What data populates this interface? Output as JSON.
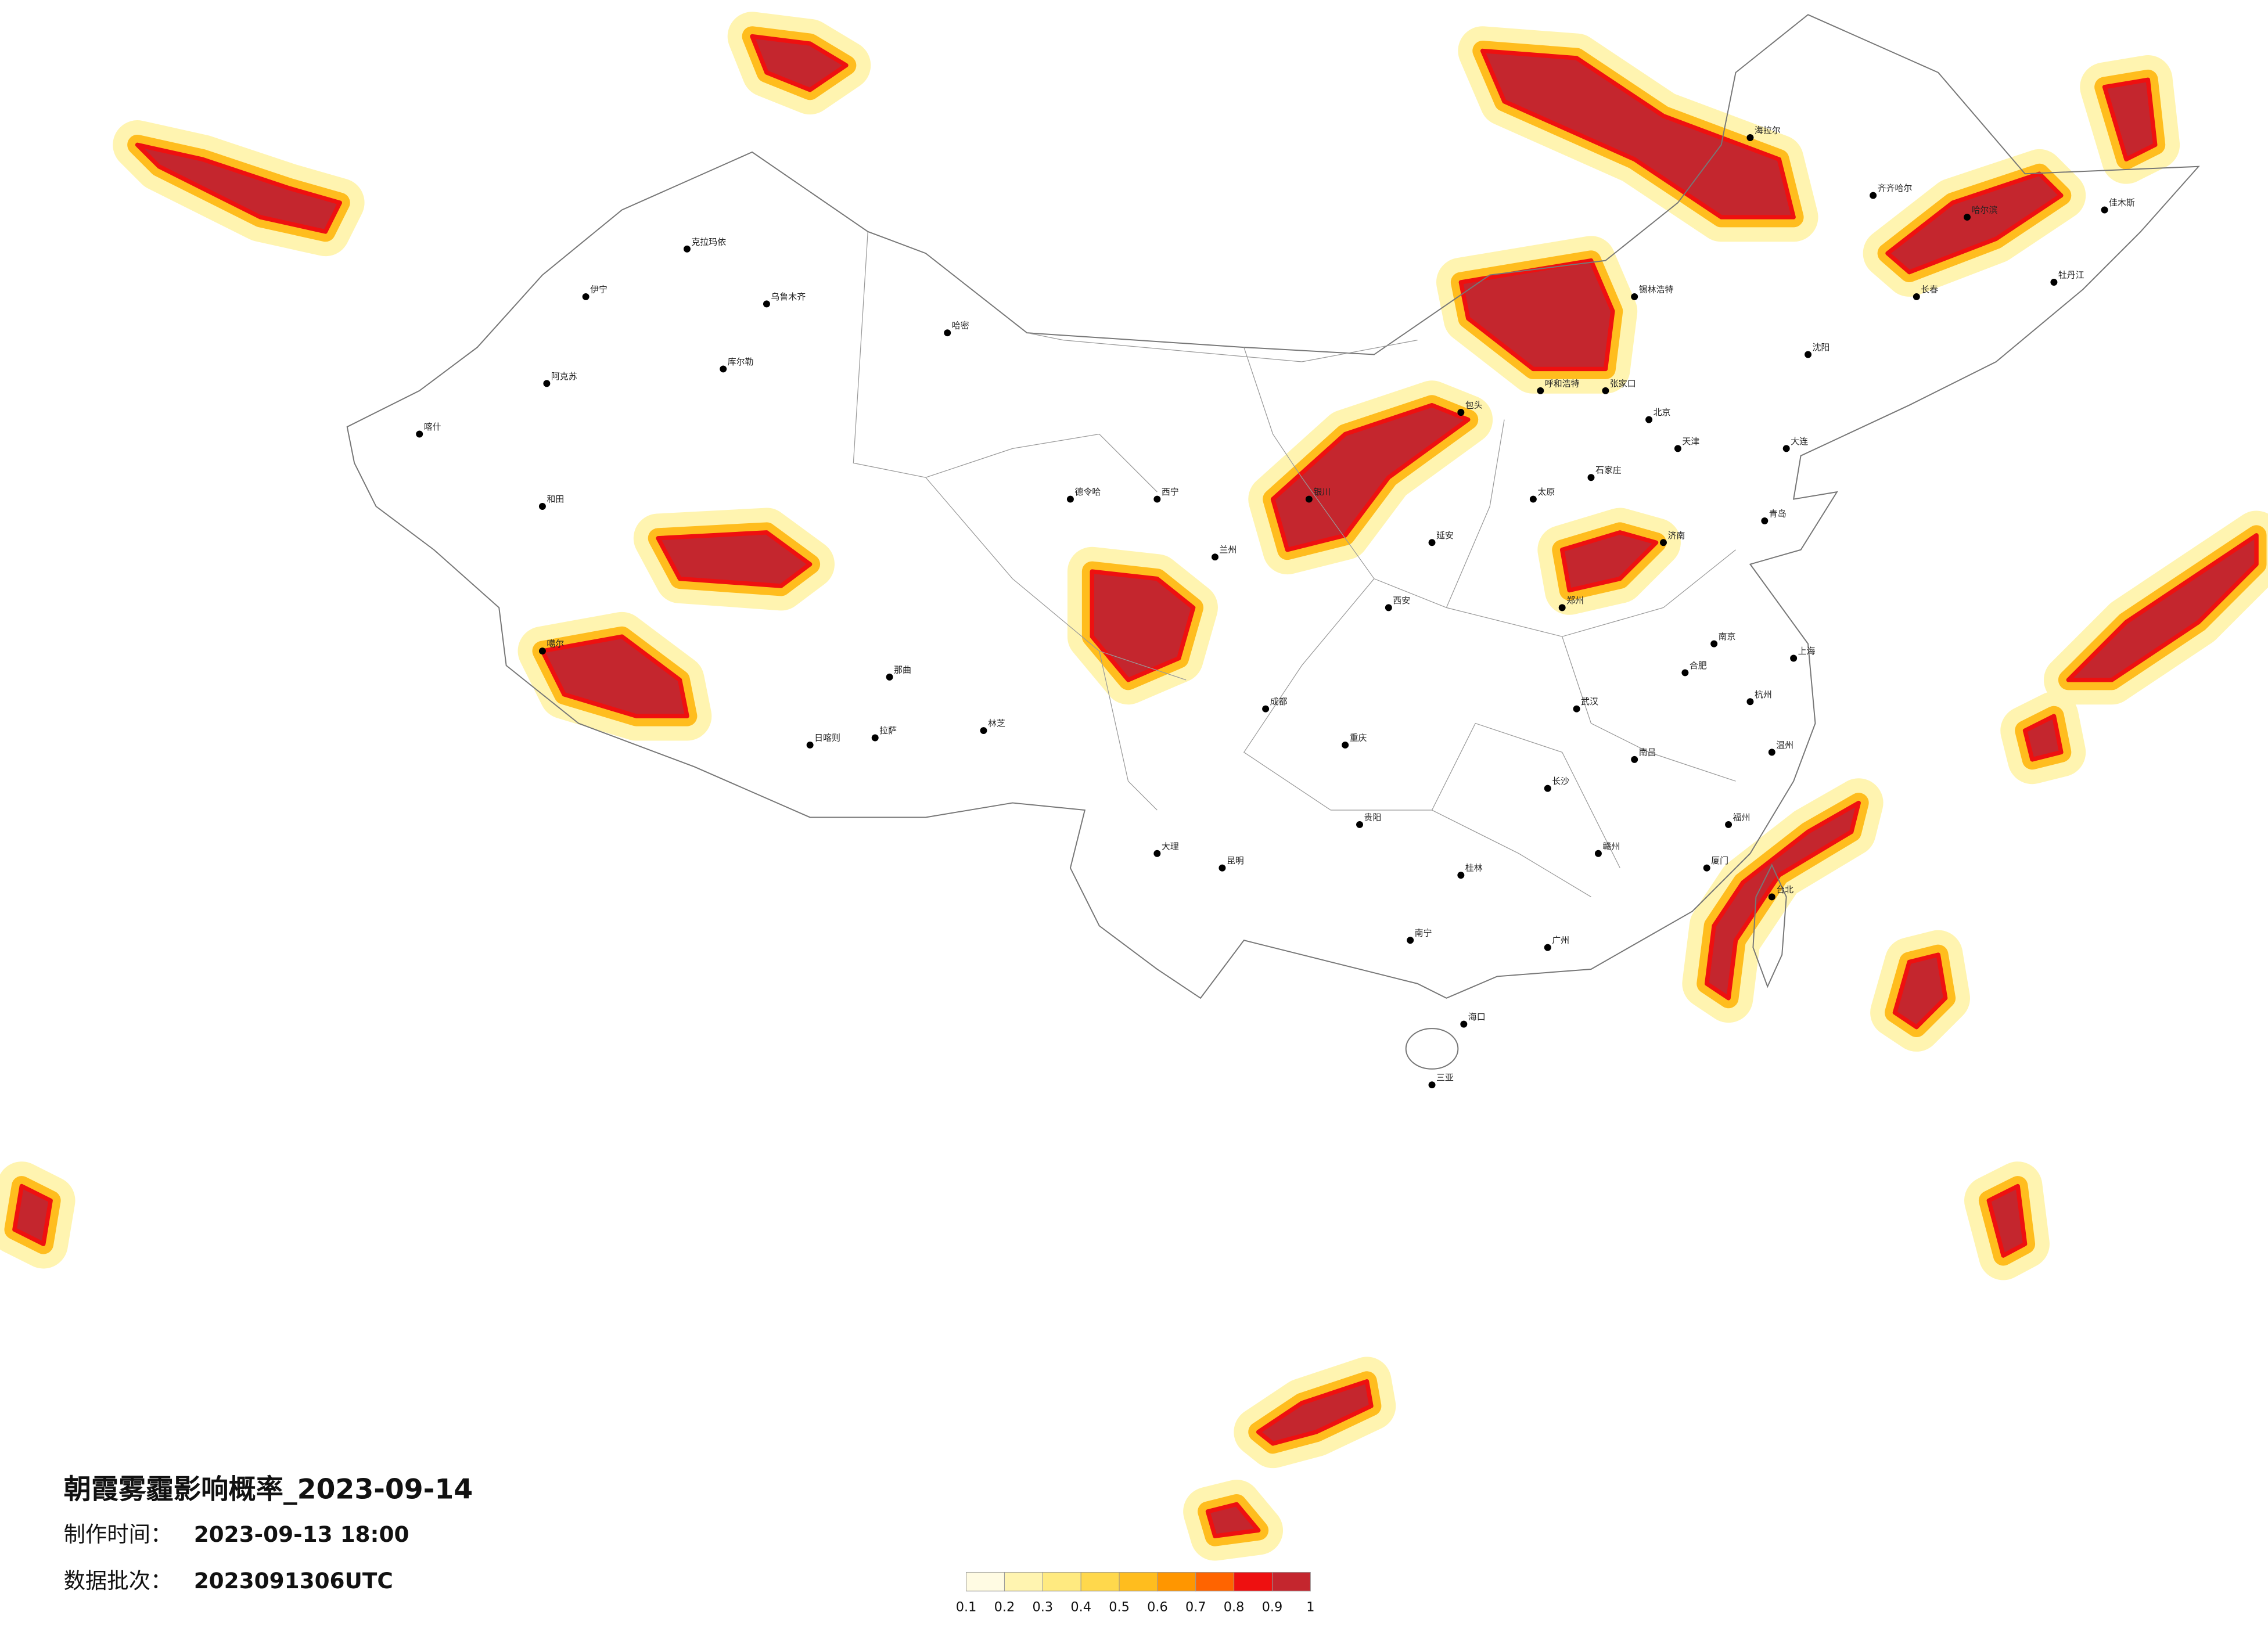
{
  "title": "朝霞雾霾影响概率_2023-09-14",
  "info": [
    {
      "label": "制作时间：",
      "value": "2023-09-13 18:00"
    },
    {
      "label": "数据批次：",
      "value": "2023091306UTC"
    }
  ],
  "legend": {
    "colors": [
      "#fffbe3",
      "#fff4b0",
      "#ffea80",
      "#ffd84c",
      "#ffbd1e",
      "#ff9600",
      "#ff6400",
      "#ee1010",
      "#c4262e"
    ],
    "ticks": [
      0.1,
      0.2,
      0.3,
      0.4,
      0.5,
      0.6,
      0.7,
      0.8,
      0.9,
      1
    ]
  },
  "cities": [
    "乌鲁木齐",
    "伊宁",
    "克拉玛依",
    "阿克苏",
    "喀什",
    "和田",
    "哈密",
    "库尔勒",
    "拉萨",
    "日喀则",
    "噶尔",
    "那曲",
    "德令哈",
    "西宁",
    "兰州",
    "银川",
    "呼和浩特",
    "北京",
    "天津",
    "石家庄",
    "太原",
    "济南",
    "郑州",
    "西安",
    "成都",
    "重庆",
    "贵阳",
    "昆明",
    "南宁",
    "广州",
    "福州",
    "杭州",
    "上海",
    "南京",
    "合肥",
    "武汉",
    "长沙",
    "南昌",
    "海口",
    "三亚",
    "台北",
    "沈阳",
    "长春",
    "哈尔滨",
    "齐齐哈尔",
    "海拉尔",
    "大连",
    "青岛",
    "包头",
    "张家口",
    "锡林浩特",
    "林芝",
    "大理",
    "桂林",
    "赣州",
    "厦门",
    "温州",
    "延安",
    "牡丹江",
    "佳木斯"
  ]
}
